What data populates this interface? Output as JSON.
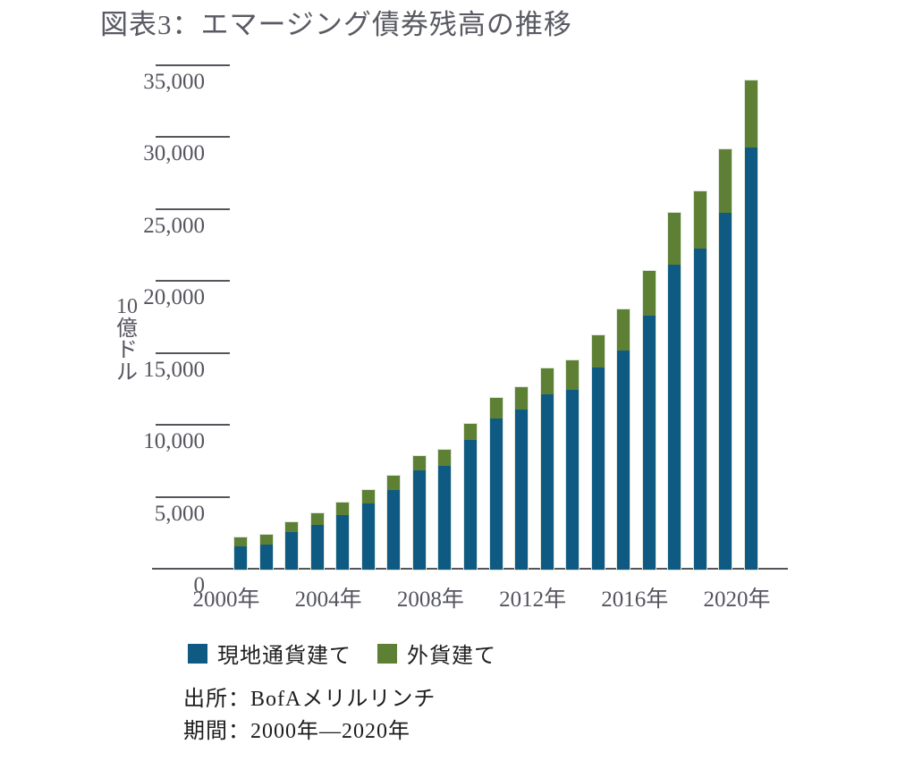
{
  "title": "図表3：エマージング債券残高の推移",
  "chart_data": {
    "type": "bar",
    "stacked": true,
    "x": [
      "2000",
      "2001",
      "2002",
      "2003",
      "2004",
      "2005",
      "2006",
      "2007",
      "2008",
      "2009",
      "2010",
      "2011",
      "2012",
      "2013",
      "2014",
      "2015",
      "2016",
      "2017",
      "2018",
      "2019",
      "2020"
    ],
    "series": [
      {
        "name": "現地通貨建て",
        "color": "#0e5a83",
        "edge_color": "#cfdfe8",
        "values": [
          1600,
          1750,
          2600,
          3100,
          3800,
          4600,
          5500,
          6900,
          7200,
          9000,
          10500,
          11100,
          12200,
          12500,
          14050,
          15200,
          17650,
          21200,
          22300,
          24800,
          29300
        ]
      },
      {
        "name": "外貨建て",
        "color": "#5e8034",
        "edge_color": "#dfe7d2",
        "values": [
          650,
          650,
          700,
          800,
          850,
          900,
          1000,
          1000,
          1100,
          1150,
          1400,
          1550,
          1800,
          2050,
          2200,
          2900,
          3100,
          3600,
          4000,
          4400,
          4700
        ]
      }
    ],
    "ylabel": "10億ドル",
    "ylabel_chars": [
      "10",
      "億",
      "ド",
      "ル"
    ],
    "ylim": [
      0,
      35000
    ],
    "ytick_interval": 5000,
    "yticks": [
      {
        "value": 0,
        "label": "0"
      },
      {
        "value": 5000,
        "label": "5,000"
      },
      {
        "value": 10000,
        "label": "10,000"
      },
      {
        "value": 15000,
        "label": "15,000"
      },
      {
        "value": 20000,
        "label": "20,000"
      },
      {
        "value": 25000,
        "label": "25,000"
      },
      {
        "value": 30000,
        "label": "30,000"
      },
      {
        "value": 35000,
        "label": "35,000"
      }
    ],
    "xticks": [
      {
        "index": 0,
        "label": "2000年"
      },
      {
        "index": 4,
        "label": "2004年"
      },
      {
        "index": 8,
        "label": "2008年"
      },
      {
        "index": 12,
        "label": "2012年"
      },
      {
        "index": 16,
        "label": "2016年"
      },
      {
        "index": 20,
        "label": "2020年"
      }
    ],
    "grid": false,
    "legend_position": "bottom-left"
  },
  "legend": {
    "items": [
      {
        "label": "現地通貨建て",
        "color": "#0e5a83"
      },
      {
        "label": "外貨建て",
        "color": "#5e8034"
      }
    ]
  },
  "source": {
    "line1": "出所：BofAメリルリンチ",
    "line2": "期間：2000年―2020年"
  },
  "colors": {
    "local_currency": "#0e5a83",
    "foreign_currency": "#5e8034",
    "axis": "#55565c",
    "tick_text": "#54555e",
    "title_text": "#595a63",
    "body_text": "#1d1d1d"
  }
}
